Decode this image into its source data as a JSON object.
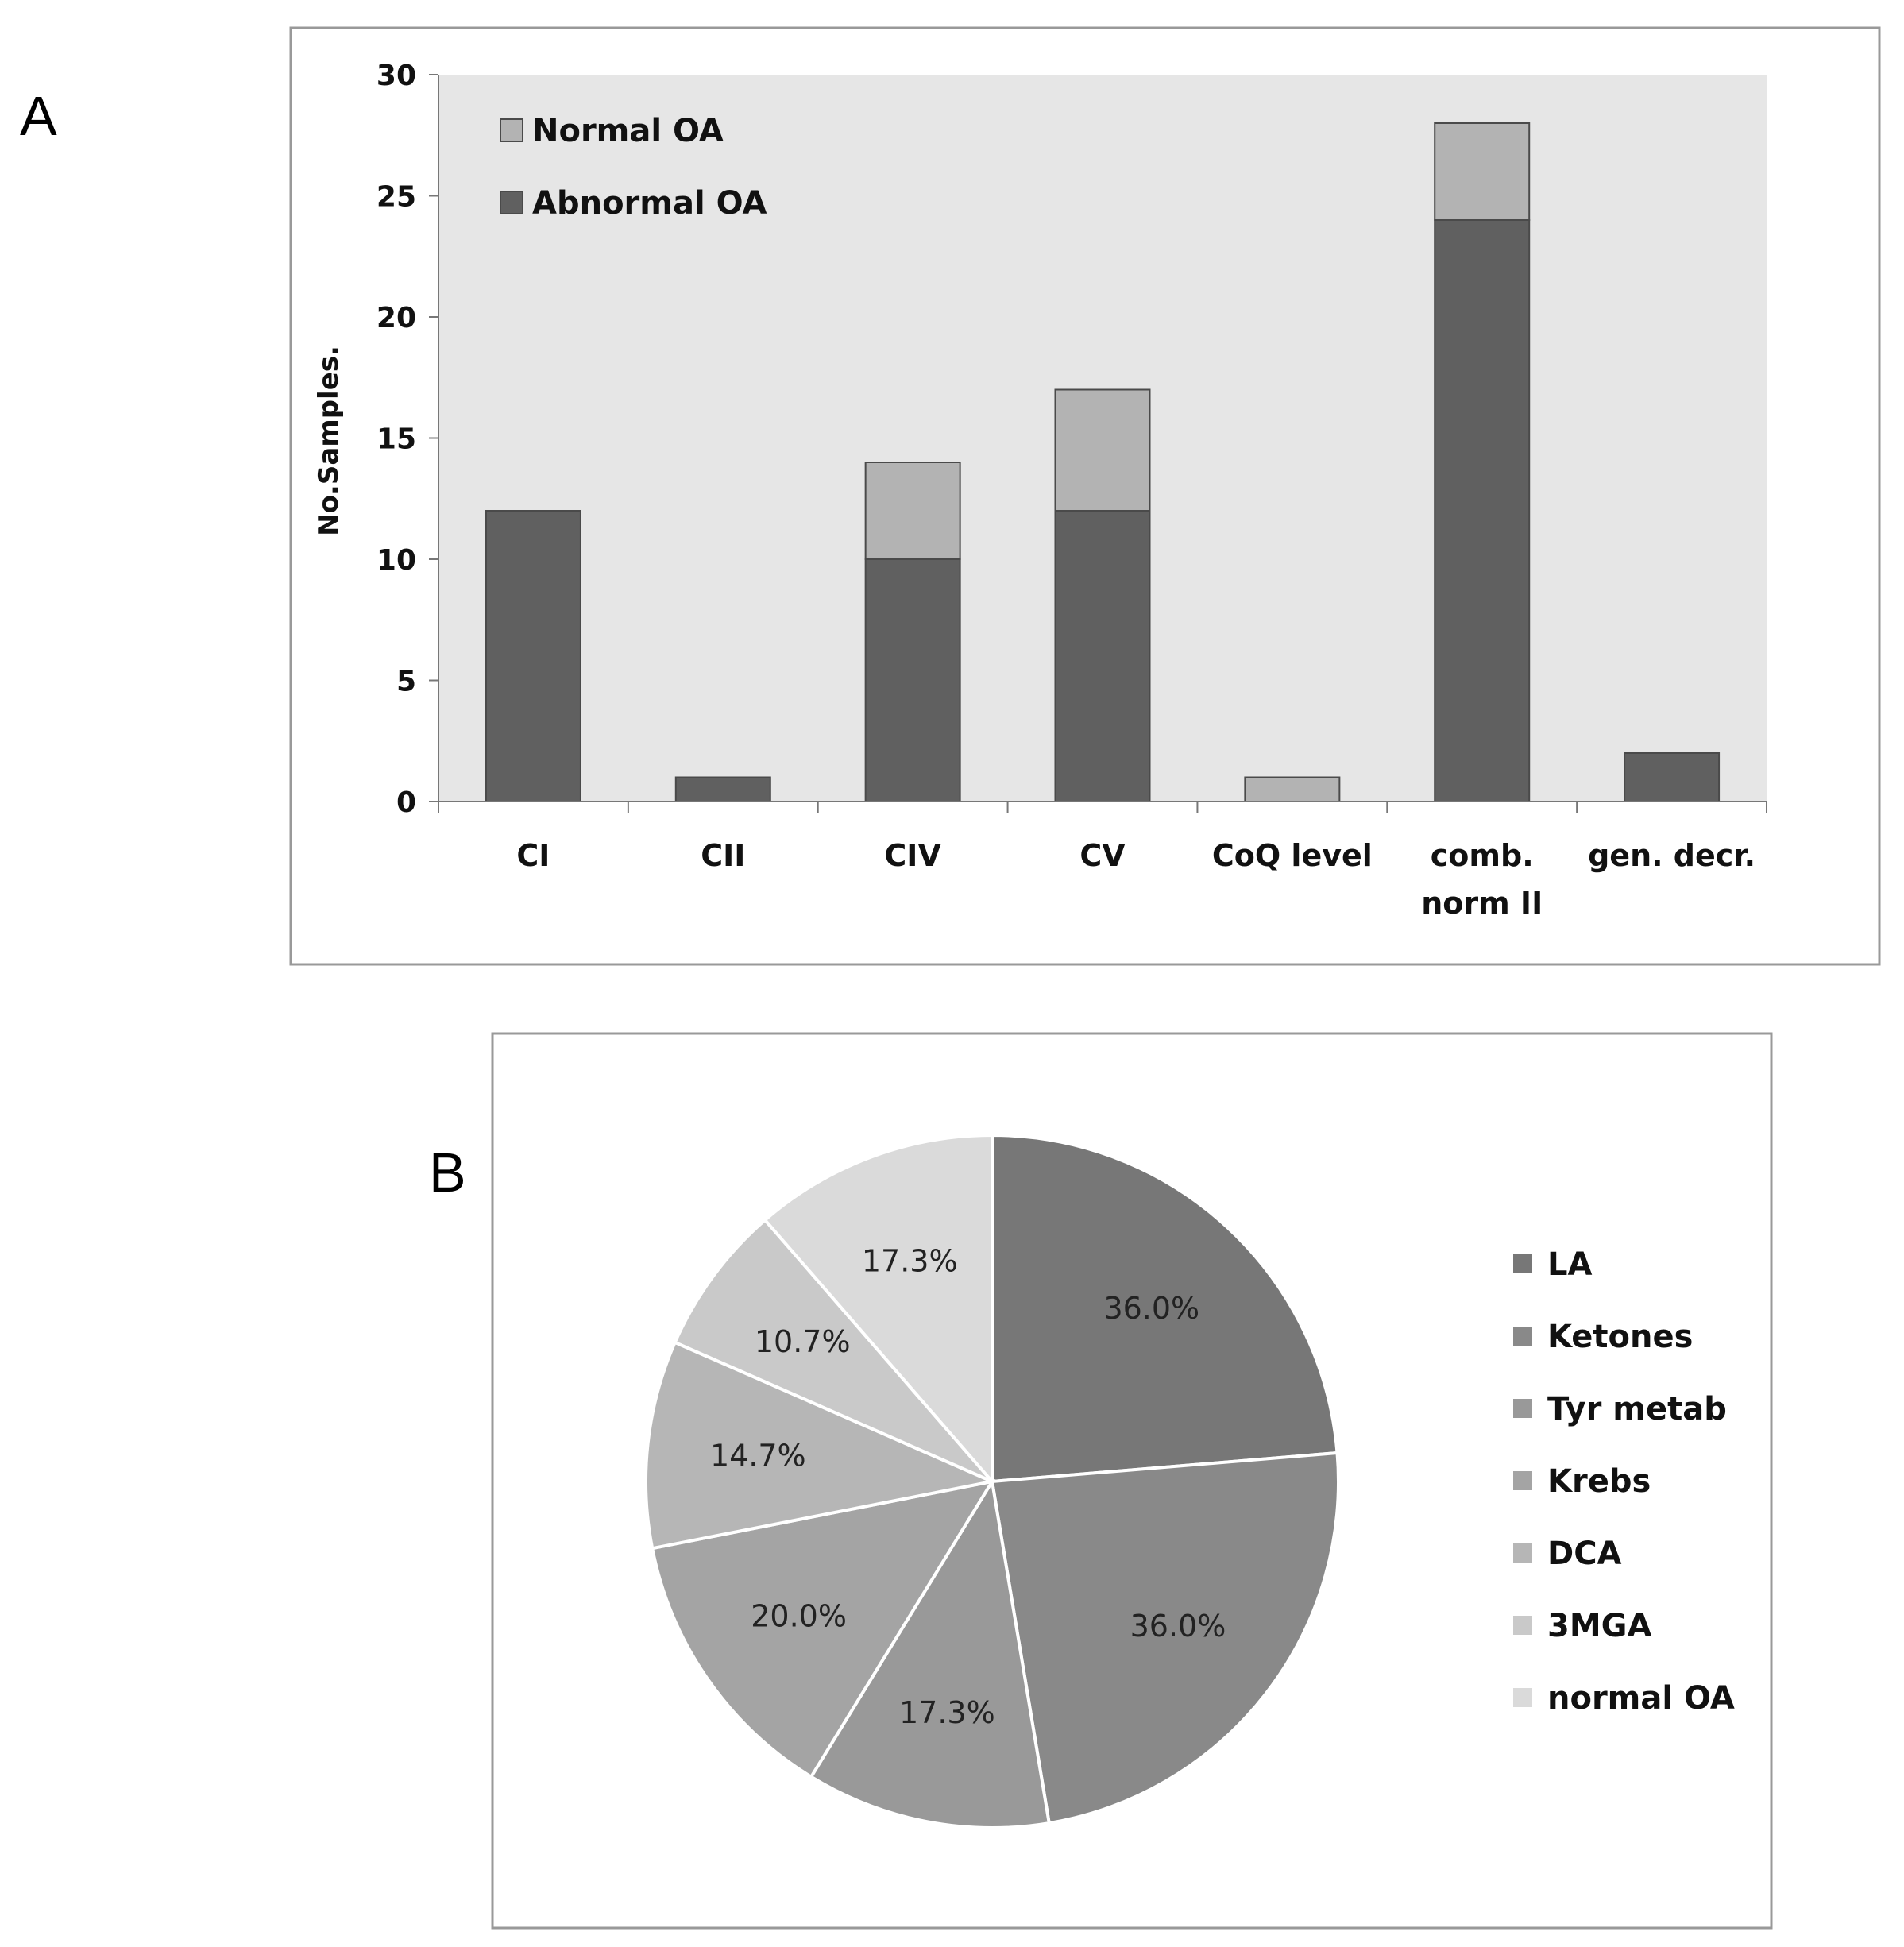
{
  "chart_data": [
    {
      "panel_label": "A",
      "type": "bar",
      "stacked": true,
      "categories": [
        [
          "CI"
        ],
        [
          "CII"
        ],
        [
          "CIV"
        ],
        [
          "CV"
        ],
        [
          "CoQ level"
        ],
        [
          "comb.",
          "norm II"
        ],
        [
          "gen. decr."
        ]
      ],
      "series": [
        {
          "name": "Abnormal OA",
          "color": "#606060",
          "values": [
            12,
            1,
            10,
            12,
            0,
            24,
            2
          ]
        },
        {
          "name": "Normal OA",
          "color": "#b3b3b3",
          "values": [
            0,
            0,
            4,
            5,
            1,
            4,
            0
          ]
        }
      ],
      "legend_order": [
        "Normal OA",
        "Abnormal OA"
      ],
      "legend_placement": "top-left",
      "ylabel": "No.Samples.",
      "xlabel": "",
      "ylim": [
        0,
        30
      ],
      "yticks": [
        0,
        5,
        10,
        15,
        20,
        25,
        30
      ],
      "plot_background": "#e6e6e6",
      "grid": false
    },
    {
      "panel_label": "B",
      "type": "pie",
      "labels": [
        "LA",
        "Ketones",
        "Tyr metab",
        "Krebs",
        "DCA",
        "3MGA",
        "normal OA"
      ],
      "values": [
        36.0,
        36.0,
        17.3,
        20.0,
        14.7,
        10.7,
        17.3
      ],
      "value_labels": [
        "36.0%",
        "36.0%",
        "17.3%",
        "20.0%",
        "14.7%",
        "10.7%",
        "17.3%"
      ],
      "colors": [
        "#777777",
        "#898989",
        "#999999",
        "#a4a4a4",
        "#b6b6b6",
        "#c9c9c9",
        "#dadada"
      ],
      "legend_placement": "right"
    }
  ]
}
